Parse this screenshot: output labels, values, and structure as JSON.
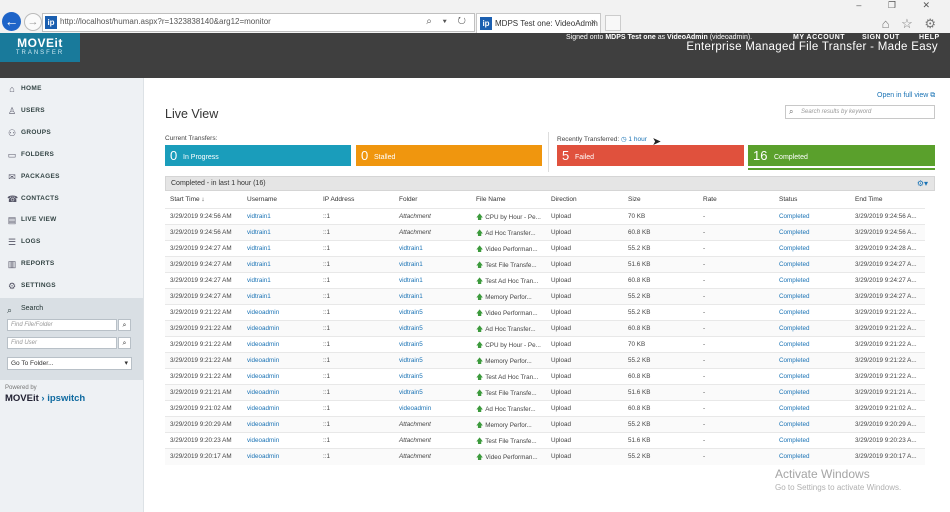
{
  "browser": {
    "url": "http://localhost/human.aspx?r=1323838140&arg12=monitor",
    "site_icon": "ip",
    "tab_title": "MDPS Test one: VideoAdmin",
    "tab_close": "×",
    "back_icon": "arrow-left-icon",
    "forward_icon": "arrow-right-icon",
    "address_icons": "⌕ ▾ ↻",
    "window_controls": "– ❐ ✕",
    "right_icons": "⌂ ☆ ⚙"
  },
  "header": {
    "logo_main": "MOVEit",
    "logo_sub": "TRANSFER",
    "tagline": "Enterprise Managed File Transfer - Made Easy",
    "signon_prefix": "Signed onto ",
    "signon_org": "MDPS Test one",
    "signon_mid": " as ",
    "signon_user": "VideoAdmin",
    "signon_suffix": " (videoadmin).",
    "links": {
      "my_account": "MY ACCOUNT",
      "sign_out": "SIGN OUT",
      "help": "HELP"
    }
  },
  "sidebar": {
    "items": [
      {
        "label": "HOME",
        "icon": "⌂"
      },
      {
        "label": "USERS",
        "icon": "♙"
      },
      {
        "label": "GROUPS",
        "icon": "⚇"
      },
      {
        "label": "FOLDERS",
        "icon": "▭"
      },
      {
        "label": "PACKAGES",
        "icon": "✉"
      },
      {
        "label": "CONTACTS",
        "icon": "☎"
      },
      {
        "label": "LIVE VIEW",
        "icon": "▤"
      },
      {
        "label": "LOGS",
        "icon": "☰"
      },
      {
        "label": "REPORTS",
        "icon": "▥"
      },
      {
        "label": "SETTINGS",
        "icon": "⚙"
      }
    ],
    "search": {
      "heading": "Search",
      "heading_icon": "⌕",
      "find_file_placeholder": "Find File/Folder",
      "find_user_placeholder": "Find User",
      "goto_folder": "Go To Folder...",
      "button_icon": "⌕",
      "caret": "▾"
    },
    "powered_by": "Powered by",
    "brand_a": "MOVEit",
    "brand_sep": " › ",
    "brand_b": "ipswitch"
  },
  "main": {
    "title": "Live View",
    "open_full_view": "Open in full view ⧉",
    "search_placeholder": "Search results by keyword",
    "search_icon": "⌕",
    "current_label": "Current Transfers:",
    "recent_label": "Recently Transferred: ",
    "recent_period": "◷ 1 hour",
    "stats": [
      {
        "count": "0",
        "label": "In Progress",
        "color": "#1a9dbb"
      },
      {
        "count": "0",
        "label": "Stalled",
        "color": "#f0960e"
      },
      {
        "count": "5",
        "label": "Failed",
        "color": "#e0513d"
      },
      {
        "count": "16",
        "label": "Completed",
        "color": "#5aa02c"
      }
    ],
    "table_caption": "Completed - in last 1 hour (16)",
    "gear": "⚙▾",
    "columns": [
      "Start Time ↓",
      "Username",
      "IP Address",
      "Folder",
      "File Name",
      "Direction",
      "Size",
      "Rate",
      "Status",
      "End Time"
    ],
    "rows": [
      [
        "3/29/2019 9:24:56 AM",
        "vidtrain1",
        "::1",
        "Attachment",
        "CPU by Hour - Pe...",
        "Upload",
        "70 KB",
        "-",
        "Completed",
        "3/29/2019 9:24:56 A..."
      ],
      [
        "3/29/2019 9:24:56 AM",
        "vidtrain1",
        "::1",
        "Attachment",
        "Ad Hoc Transfer...",
        "Upload",
        "60.8 KB",
        "-",
        "Completed",
        "3/29/2019 9:24:56 A..."
      ],
      [
        "3/29/2019 9:24:27 AM",
        "vidtrain1",
        "::1",
        "vidtrain1",
        "Video Performan...",
        "Upload",
        "55.2 KB",
        "-",
        "Completed",
        "3/29/2019 9:24:28 A..."
      ],
      [
        "3/29/2019 9:24:27 AM",
        "vidtrain1",
        "::1",
        "vidtrain1",
        "Test File Transfe...",
        "Upload",
        "51.6 KB",
        "-",
        "Completed",
        "3/29/2019 9:24:27 A..."
      ],
      [
        "3/29/2019 9:24:27 AM",
        "vidtrain1",
        "::1",
        "vidtrain1",
        "Test Ad Hoc Tran...",
        "Upload",
        "60.8 KB",
        "-",
        "Completed",
        "3/29/2019 9:24:27 A..."
      ],
      [
        "3/29/2019 9:24:27 AM",
        "vidtrain1",
        "::1",
        "vidtrain1",
        "Memory Perfor...",
        "Upload",
        "55.2 KB",
        "-",
        "Completed",
        "3/29/2019 9:24:27 A..."
      ],
      [
        "3/29/2019 9:21:22 AM",
        "videoadmin",
        "::1",
        "vidtrain5",
        "Video Performan...",
        "Upload",
        "55.2 KB",
        "-",
        "Completed",
        "3/29/2019 9:21:22 A..."
      ],
      [
        "3/29/2019 9:21:22 AM",
        "videoadmin",
        "::1",
        "vidtrain5",
        "Ad Hoc Transfer...",
        "Upload",
        "60.8 KB",
        "-",
        "Completed",
        "3/29/2019 9:21:22 A..."
      ],
      [
        "3/29/2019 9:21:22 AM",
        "videoadmin",
        "::1",
        "vidtrain5",
        "CPU by Hour - Pe...",
        "Upload",
        "70 KB",
        "-",
        "Completed",
        "3/29/2019 9:21:22 A..."
      ],
      [
        "3/29/2019 9:21:22 AM",
        "videoadmin",
        "::1",
        "vidtrain5",
        "Memory Perfor...",
        "Upload",
        "55.2 KB",
        "-",
        "Completed",
        "3/29/2019 9:21:22 A..."
      ],
      [
        "3/29/2019 9:21:22 AM",
        "videoadmin",
        "::1",
        "vidtrain5",
        "Test Ad Hoc Tran...",
        "Upload",
        "60.8 KB",
        "-",
        "Completed",
        "3/29/2019 9:21:22 A..."
      ],
      [
        "3/29/2019 9:21:21 AM",
        "videoadmin",
        "::1",
        "vidtrain5",
        "Test File Transfe...",
        "Upload",
        "51.6 KB",
        "-",
        "Completed",
        "3/29/2019 9:21:21 A..."
      ],
      [
        "3/29/2019 9:21:02 AM",
        "videoadmin",
        "::1",
        "videoadmin",
        "Ad Hoc Transfer...",
        "Upload",
        "60.8 KB",
        "-",
        "Completed",
        "3/29/2019 9:21:02 A..."
      ],
      [
        "3/29/2019 9:20:29 AM",
        "videoadmin",
        "::1",
        "Attachment",
        "Memory Perfor...",
        "Upload",
        "55.2 KB",
        "-",
        "Completed",
        "3/29/2019 9:20:29 A..."
      ],
      [
        "3/29/2019 9:20:23 AM",
        "videoadmin",
        "::1",
        "Attachment",
        "Test File Transfe...",
        "Upload",
        "51.6 KB",
        "-",
        "Completed",
        "3/29/2019 9:20:23 A..."
      ],
      [
        "3/29/2019 9:20:17 AM",
        "videoadmin",
        "::1",
        "Attachment",
        "Video Performan...",
        "Upload",
        "55.2 KB",
        "-",
        "Completed",
        "3/29/2019 9:20:17 A..."
      ]
    ],
    "upload_arrow": "🡅"
  },
  "watermark": {
    "title": "Activate Windows",
    "subtitle": "Go to Settings to activate Windows."
  }
}
